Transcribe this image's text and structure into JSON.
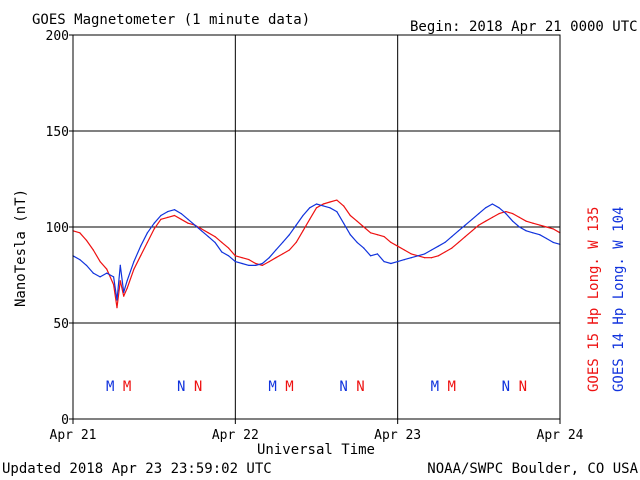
{
  "header": {
    "title": "GOES Magnetometer (1 minute data)",
    "begin": "Begin:  2018 Apr 21 0000 UTC"
  },
  "footer": {
    "updated": "Updated 2018 Apr 23 23:59:02 UTC",
    "source": "NOAA/SWPC Boulder, CO USA"
  },
  "legend": {
    "red_label": "GOES 15 Hp  Long. W 135",
    "blue_label": "GOES 14 Hp  Long. W 104"
  },
  "colors": {
    "red": "#ee1111",
    "blue": "#1133dd"
  },
  "chart_data": {
    "type": "line",
    "title": "GOES Magnetometer (1 minute data)",
    "xlabel": "Universal Time",
    "ylabel": "NanoTesla (nT)",
    "xlim_hours": [
      0,
      72
    ],
    "ylim": [
      0,
      200
    ],
    "yticks": [
      0,
      50,
      100,
      150,
      200
    ],
    "xticks": [
      {
        "hour": 0,
        "label": "Apr 21"
      },
      {
        "hour": 24,
        "label": "Apr 22"
      },
      {
        "hour": 48,
        "label": "Apr 23"
      },
      {
        "hour": 72,
        "label": "Apr 24"
      }
    ],
    "grid": true,
    "series": [
      {
        "name": "GOES 15 Hp  Long. W 135",
        "color": "#ee1111",
        "x": [
          0,
          1,
          2,
          3,
          4,
          5,
          6,
          6.5,
          7,
          7.5,
          8,
          9,
          10,
          11,
          12,
          13,
          14,
          15,
          16,
          17,
          18,
          19,
          20,
          21,
          22,
          23,
          24,
          25,
          26,
          27,
          28,
          29,
          30,
          31,
          32,
          33,
          34,
          35,
          36,
          37,
          38,
          39,
          40,
          41,
          42,
          43,
          44,
          45,
          46,
          47,
          48,
          49,
          50,
          51,
          52,
          53,
          54,
          55,
          56,
          57,
          58,
          59,
          60,
          61,
          62,
          63,
          64,
          65,
          66,
          67,
          68,
          69,
          70,
          71,
          72
        ],
        "y": [
          98,
          97,
          93,
          88,
          82,
          78,
          70,
          58,
          72,
          64,
          68,
          78,
          85,
          92,
          99,
          104,
          105,
          106,
          104,
          102,
          101,
          99,
          97,
          95,
          92,
          89,
          85,
          84,
          83,
          81,
          80,
          82,
          84,
          86,
          88,
          92,
          98,
          104,
          110,
          112,
          113,
          114,
          111,
          106,
          103,
          100,
          97,
          96,
          95,
          92,
          90,
          88,
          86,
          85,
          84,
          84,
          85,
          87,
          89,
          92,
          95,
          98,
          101,
          103,
          105,
          107,
          108,
          107,
          105,
          103,
          102,
          101,
          100,
          99,
          97
        ]
      },
      {
        "name": "GOES 14 Hp  Long. W 104",
        "color": "#1133dd",
        "x": [
          0,
          1,
          2,
          3,
          4,
          5,
          6,
          6.5,
          7,
          7.5,
          8,
          9,
          10,
          11,
          12,
          13,
          14,
          15,
          16,
          17,
          18,
          19,
          20,
          21,
          22,
          23,
          24,
          25,
          26,
          27,
          28,
          29,
          30,
          31,
          32,
          33,
          34,
          35,
          36,
          37,
          38,
          39,
          40,
          41,
          42,
          43,
          44,
          45,
          46,
          47,
          48,
          49,
          50,
          51,
          52,
          53,
          54,
          55,
          56,
          57,
          58,
          59,
          60,
          61,
          62,
          63,
          64,
          65,
          66,
          67,
          68,
          69,
          70,
          71,
          72
        ],
        "y": [
          85,
          83,
          80,
          76,
          74,
          76,
          74,
          62,
          80,
          66,
          72,
          82,
          90,
          97,
          102,
          106,
          108,
          109,
          107,
          104,
          101,
          98,
          95,
          92,
          87,
          85,
          82,
          81,
          80,
          80,
          81,
          84,
          88,
          92,
          96,
          101,
          106,
          110,
          112,
          111,
          110,
          108,
          102,
          96,
          92,
          89,
          85,
          86,
          82,
          81,
          82,
          83,
          84,
          85,
          86,
          88,
          90,
          92,
          95,
          98,
          101,
          104,
          107,
          110,
          112,
          110,
          107,
          103,
          100,
          98,
          97,
          96,
          94,
          92,
          91
        ]
      }
    ],
    "annotations": [
      {
        "hour": 5.5,
        "text": "M",
        "series": "blue"
      },
      {
        "hour": 8,
        "text": "M",
        "series": "red"
      },
      {
        "hour": 16,
        "text": "N",
        "series": "blue"
      },
      {
        "hour": 18.5,
        "text": "N",
        "series": "red"
      },
      {
        "hour": 29.5,
        "text": "M",
        "series": "blue"
      },
      {
        "hour": 32,
        "text": "M",
        "series": "red"
      },
      {
        "hour": 40,
        "text": "N",
        "series": "blue"
      },
      {
        "hour": 42.5,
        "text": "N",
        "series": "red"
      },
      {
        "hour": 53.5,
        "text": "M",
        "series": "blue"
      },
      {
        "hour": 56,
        "text": "M",
        "series": "red"
      },
      {
        "hour": 64,
        "text": "N",
        "series": "blue"
      },
      {
        "hour": 66.5,
        "text": "N",
        "series": "red"
      }
    ]
  }
}
